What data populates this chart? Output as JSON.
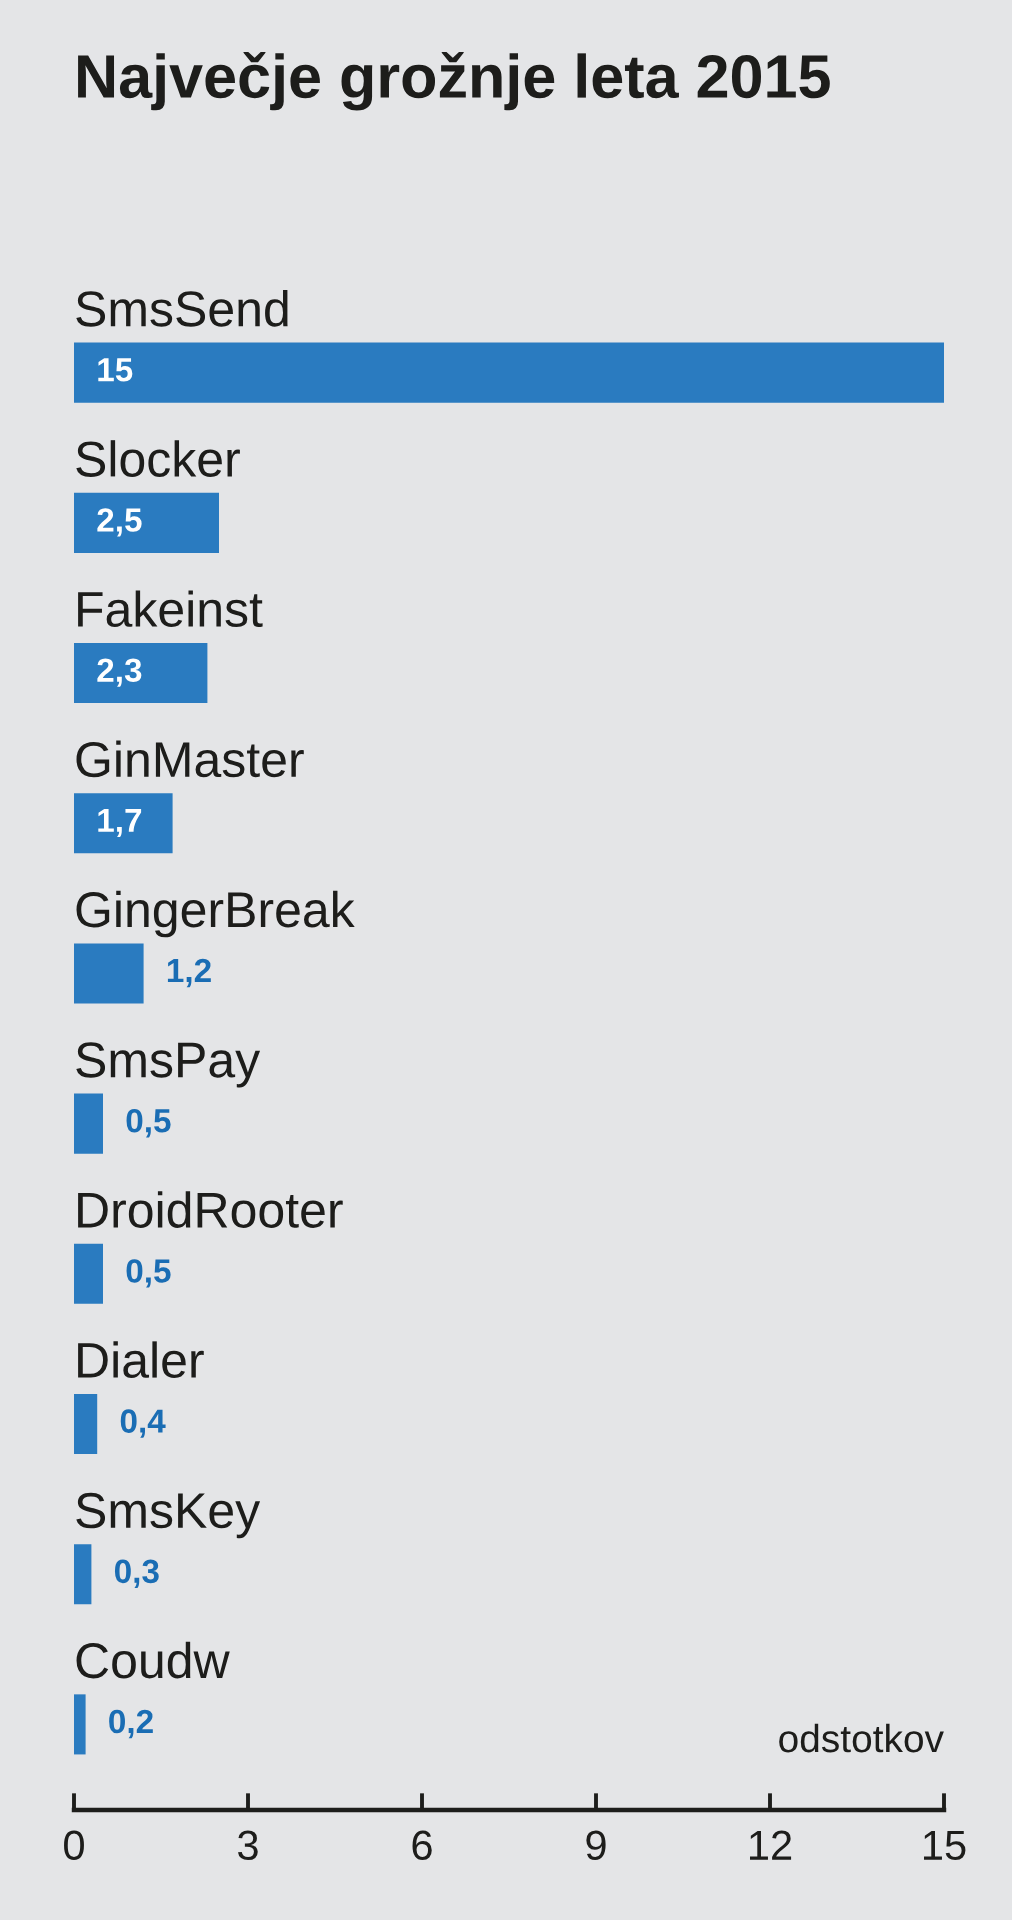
{
  "chart_data": {
    "type": "bar",
    "orientation": "horizontal",
    "title": "Največje grožnje leta 2015",
    "xlabel": "odstotkov",
    "categories": [
      "SmsSend",
      "Slocker",
      "Fakeinst",
      "GinMaster",
      "GingerBreak",
      "SmsPay",
      "DroidRooter",
      "Dialer",
      "SmsKey",
      "Coudw"
    ],
    "values": [
      15,
      2.5,
      2.3,
      1.7,
      1.2,
      0.5,
      0.5,
      0.4,
      0.3,
      0.2
    ],
    "value_labels": [
      "15",
      "2,5",
      "2,3",
      "1,7",
      "1,2",
      "0,5",
      "0,5",
      "0,4",
      "0,3",
      "0,2"
    ],
    "color": "#2a7bc0",
    "xlim": [
      0,
      15
    ],
    "xticks": [
      0,
      3,
      6,
      9,
      12,
      15
    ]
  }
}
